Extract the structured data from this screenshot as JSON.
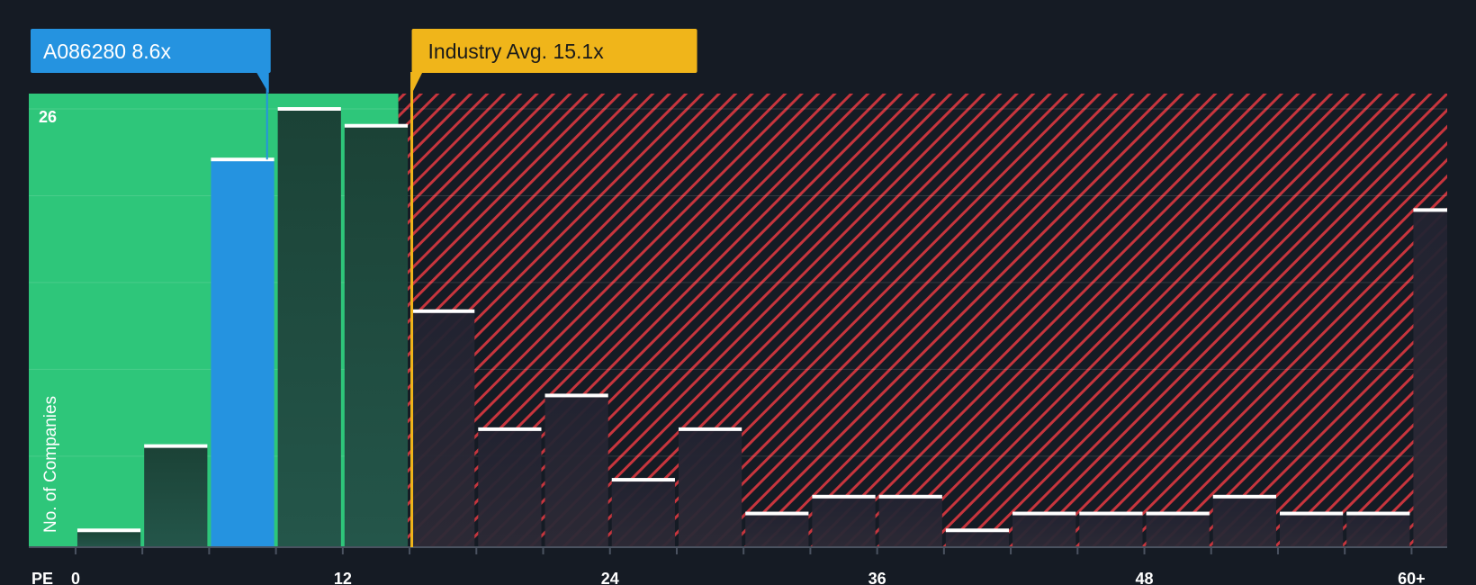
{
  "chart_data": {
    "type": "bar",
    "title": "",
    "xlabel": "PE",
    "ylabel": "No. of Companies",
    "x_ticks": [
      {
        "value": 0,
        "label": "0"
      },
      {
        "value": 12,
        "label": "12"
      },
      {
        "value": 24,
        "label": "24"
      },
      {
        "value": 36,
        "label": "36"
      },
      {
        "value": 48,
        "label": "48"
      },
      {
        "value": 60,
        "label": "60+"
      }
    ],
    "y_ticks": [
      {
        "value": 26,
        "label": "26"
      }
    ],
    "xlim": [
      -2.1,
      61.6
    ],
    "ylim": [
      0,
      27
    ],
    "bin_width": 3,
    "bins": [
      {
        "start": 0,
        "count": 1
      },
      {
        "start": 3,
        "count": 6
      },
      {
        "start": 6,
        "count": 23
      },
      {
        "start": 9,
        "count": 26
      },
      {
        "start": 12,
        "count": 25
      },
      {
        "start": 15,
        "count": 14
      },
      {
        "start": 18,
        "count": 7
      },
      {
        "start": 21,
        "count": 9
      },
      {
        "start": 24,
        "count": 4
      },
      {
        "start": 27,
        "count": 7
      },
      {
        "start": 30,
        "count": 2
      },
      {
        "start": 33,
        "count": 3
      },
      {
        "start": 36,
        "count": 3
      },
      {
        "start": 39,
        "count": 1
      },
      {
        "start": 42,
        "count": 2
      },
      {
        "start": 45,
        "count": 2
      },
      {
        "start": 48,
        "count": 2
      },
      {
        "start": 51,
        "count": 3
      },
      {
        "start": 54,
        "count": 2
      },
      {
        "start": 57,
        "count": 2
      },
      {
        "start": 60,
        "count": 20
      }
    ],
    "highlight_value": 8.6,
    "highlight_label": "A086280 8.6x",
    "industry_avg_value": 15.1,
    "industry_avg_label": "Industry Avg. 15.1x",
    "fair_zone_end": 14.5
  },
  "colors": {
    "background": "#151b24",
    "fair_zone": "#2ec67a",
    "expensive_zone": "#c7353d",
    "highlight_bar": "#2593e0",
    "bar_dark": "#1f4a3b",
    "bar_in_red": "#2a2b35",
    "industry_avg": "#f0b51a"
  }
}
